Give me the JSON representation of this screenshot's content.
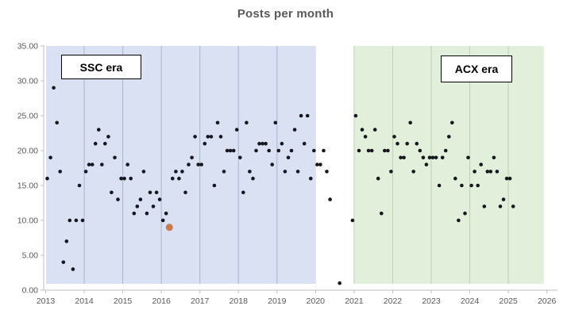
{
  "title": "Posts per month",
  "chart_data": {
    "type": "scatter",
    "title": "Posts per month",
    "xlabel": "",
    "ylabel": "",
    "xlim": [
      2013,
      2026
    ],
    "ylim": [
      0,
      35
    ],
    "grid": "vertical-yearly-inside-regions",
    "legend": "none",
    "x_tick_labels": [
      "2013",
      "2014",
      "2015",
      "2016",
      "2017",
      "2018",
      "2019",
      "2020",
      "2021",
      "2022",
      "2023",
      "2024",
      "2025",
      "2026"
    ],
    "y_tick_labels": [
      "0.00",
      "5.00",
      "10.00",
      "15.00",
      "20.00",
      "25.00",
      "30.00",
      "35.00"
    ],
    "regions": [
      {
        "label": "SSC era",
        "start": 2013.0,
        "end": 2020.0,
        "fill": "#d9e1f2",
        "gridline_color": "#a9b5cd",
        "grid_years": [
          2014,
          2015,
          2016,
          2017,
          2018,
          2019
        ]
      },
      {
        "label": "ACX era",
        "start": 2021.0,
        "end": 2025.92,
        "fill": "#e2efda",
        "gridline_color": "#bfd0b7",
        "grid_years": [
          2021,
          2022,
          2023,
          2024,
          2025
        ]
      }
    ],
    "colors": {
      "point": "#16161f",
      "highlight": "#c97b4e",
      "axis": "#bfbfbf",
      "tick_text": "#595959",
      "title_text": "#595959"
    },
    "series": [
      {
        "name": "posts-per-month",
        "color": "#16161f",
        "points": [
          [
            "2013-01",
            16
          ],
          [
            "2013-02",
            19
          ],
          [
            "2013-03",
            29
          ],
          [
            "2013-04",
            24
          ],
          [
            "2013-05",
            17
          ],
          [
            "2013-06",
            4
          ],
          [
            "2013-07",
            7
          ],
          [
            "2013-08",
            10
          ],
          [
            "2013-09",
            3
          ],
          [
            "2013-10",
            10
          ],
          [
            "2013-11",
            15
          ],
          [
            "2013-12",
            10
          ],
          [
            "2014-01",
            17
          ],
          [
            "2014-02",
            18
          ],
          [
            "2014-03",
            18
          ],
          [
            "2014-04",
            21
          ],
          [
            "2014-05",
            23
          ],
          [
            "2014-06",
            18
          ],
          [
            "2014-07",
            21
          ],
          [
            "2014-08",
            22
          ],
          [
            "2014-09",
            14
          ],
          [
            "2014-10",
            19
          ],
          [
            "2014-11",
            13
          ],
          [
            "2014-12",
            16
          ],
          [
            "2015-01",
            16
          ],
          [
            "2015-02",
            18
          ],
          [
            "2015-03",
            16
          ],
          [
            "2015-04",
            11
          ],
          [
            "2015-05",
            12
          ],
          [
            "2015-06",
            13
          ],
          [
            "2015-07",
            17
          ],
          [
            "2015-08",
            11
          ],
          [
            "2015-09",
            14
          ],
          [
            "2015-10",
            12
          ],
          [
            "2015-11",
            14
          ],
          [
            "2015-12",
            13
          ],
          [
            "2016-01",
            10
          ],
          [
            "2016-02",
            11
          ],
          [
            "2016-04",
            16
          ],
          [
            "2016-05",
            17
          ],
          [
            "2016-06",
            16
          ],
          [
            "2016-07",
            17
          ],
          [
            "2016-08",
            14
          ],
          [
            "2016-09",
            18
          ],
          [
            "2016-10",
            19
          ],
          [
            "2016-11",
            22
          ],
          [
            "2016-12",
            18
          ],
          [
            "2017-01",
            18
          ],
          [
            "2017-02",
            21
          ],
          [
            "2017-03",
            22
          ],
          [
            "2017-04",
            22
          ],
          [
            "2017-05",
            15
          ],
          [
            "2017-06",
            24
          ],
          [
            "2017-07",
            22
          ],
          [
            "2017-08",
            17
          ],
          [
            "2017-09",
            20
          ],
          [
            "2017-10",
            20
          ],
          [
            "2017-11",
            20
          ],
          [
            "2017-12",
            23
          ],
          [
            "2018-01",
            19
          ],
          [
            "2018-02",
            14
          ],
          [
            "2018-03",
            24
          ],
          [
            "2018-04",
            17
          ],
          [
            "2018-05",
            16
          ],
          [
            "2018-06",
            20
          ],
          [
            "2018-07",
            21
          ],
          [
            "2018-08",
            21
          ],
          [
            "2018-09",
            21
          ],
          [
            "2018-10",
            20
          ],
          [
            "2018-11",
            18
          ],
          [
            "2018-12",
            24
          ],
          [
            "2019-01",
            20
          ],
          [
            "2019-02",
            21
          ],
          [
            "2019-03",
            17
          ],
          [
            "2019-04",
            19
          ],
          [
            "2019-05",
            20
          ],
          [
            "2019-06",
            23
          ],
          [
            "2019-07",
            17
          ],
          [
            "2019-08",
            25
          ],
          [
            "2019-09",
            21
          ],
          [
            "2019-10",
            25
          ],
          [
            "2019-11",
            16
          ],
          [
            "2019-12",
            20
          ],
          [
            "2020-01",
            18
          ],
          [
            "2020-02",
            18
          ],
          [
            "2020-03",
            20
          ],
          [
            "2020-04",
            17
          ],
          [
            "2020-05",
            13
          ],
          [
            "2020-08",
            1
          ],
          [
            "2020-12",
            10
          ],
          [
            "2021-01",
            25
          ],
          [
            "2021-02",
            20
          ],
          [
            "2021-03",
            23
          ],
          [
            "2021-04",
            22
          ],
          [
            "2021-05",
            20
          ],
          [
            "2021-06",
            20
          ],
          [
            "2021-07",
            23
          ],
          [
            "2021-08",
            16
          ],
          [
            "2021-09",
            11
          ],
          [
            "2021-10",
            20
          ],
          [
            "2021-11",
            20
          ],
          [
            "2021-12",
            17
          ],
          [
            "2022-01",
            22
          ],
          [
            "2022-02",
            21
          ],
          [
            "2022-03",
            19
          ],
          [
            "2022-04",
            19
          ],
          [
            "2022-05",
            21
          ],
          [
            "2022-06",
            24
          ],
          [
            "2022-07",
            17
          ],
          [
            "2022-08",
            21
          ],
          [
            "2022-09",
            20
          ],
          [
            "2022-10",
            19
          ],
          [
            "2022-11",
            18
          ],
          [
            "2022-12",
            19
          ],
          [
            "2023-01",
            19
          ],
          [
            "2023-02",
            19
          ],
          [
            "2023-03",
            15
          ],
          [
            "2023-04",
            19
          ],
          [
            "2023-05",
            20
          ],
          [
            "2023-06",
            22
          ],
          [
            "2023-07",
            24
          ],
          [
            "2023-08",
            16
          ],
          [
            "2023-09",
            10
          ],
          [
            "2023-10",
            15
          ],
          [
            "2023-11",
            11
          ],
          [
            "2023-12",
            19
          ],
          [
            "2024-01",
            15
          ],
          [
            "2024-02",
            17
          ],
          [
            "2024-03",
            15
          ],
          [
            "2024-04",
            18
          ],
          [
            "2024-05",
            12
          ],
          [
            "2024-06",
            17
          ],
          [
            "2024-07",
            17
          ],
          [
            "2024-08",
            19
          ],
          [
            "2024-09",
            17
          ],
          [
            "2024-10",
            12
          ],
          [
            "2024-11",
            13
          ],
          [
            "2024-12",
            16
          ],
          [
            "2025-01",
            16
          ],
          [
            "2025-02",
            12
          ]
        ]
      },
      {
        "name": "highlighted-month",
        "color": "#c97b4e",
        "marker_size": "large",
        "points": [
          [
            "2016-03",
            9
          ]
        ]
      }
    ]
  }
}
